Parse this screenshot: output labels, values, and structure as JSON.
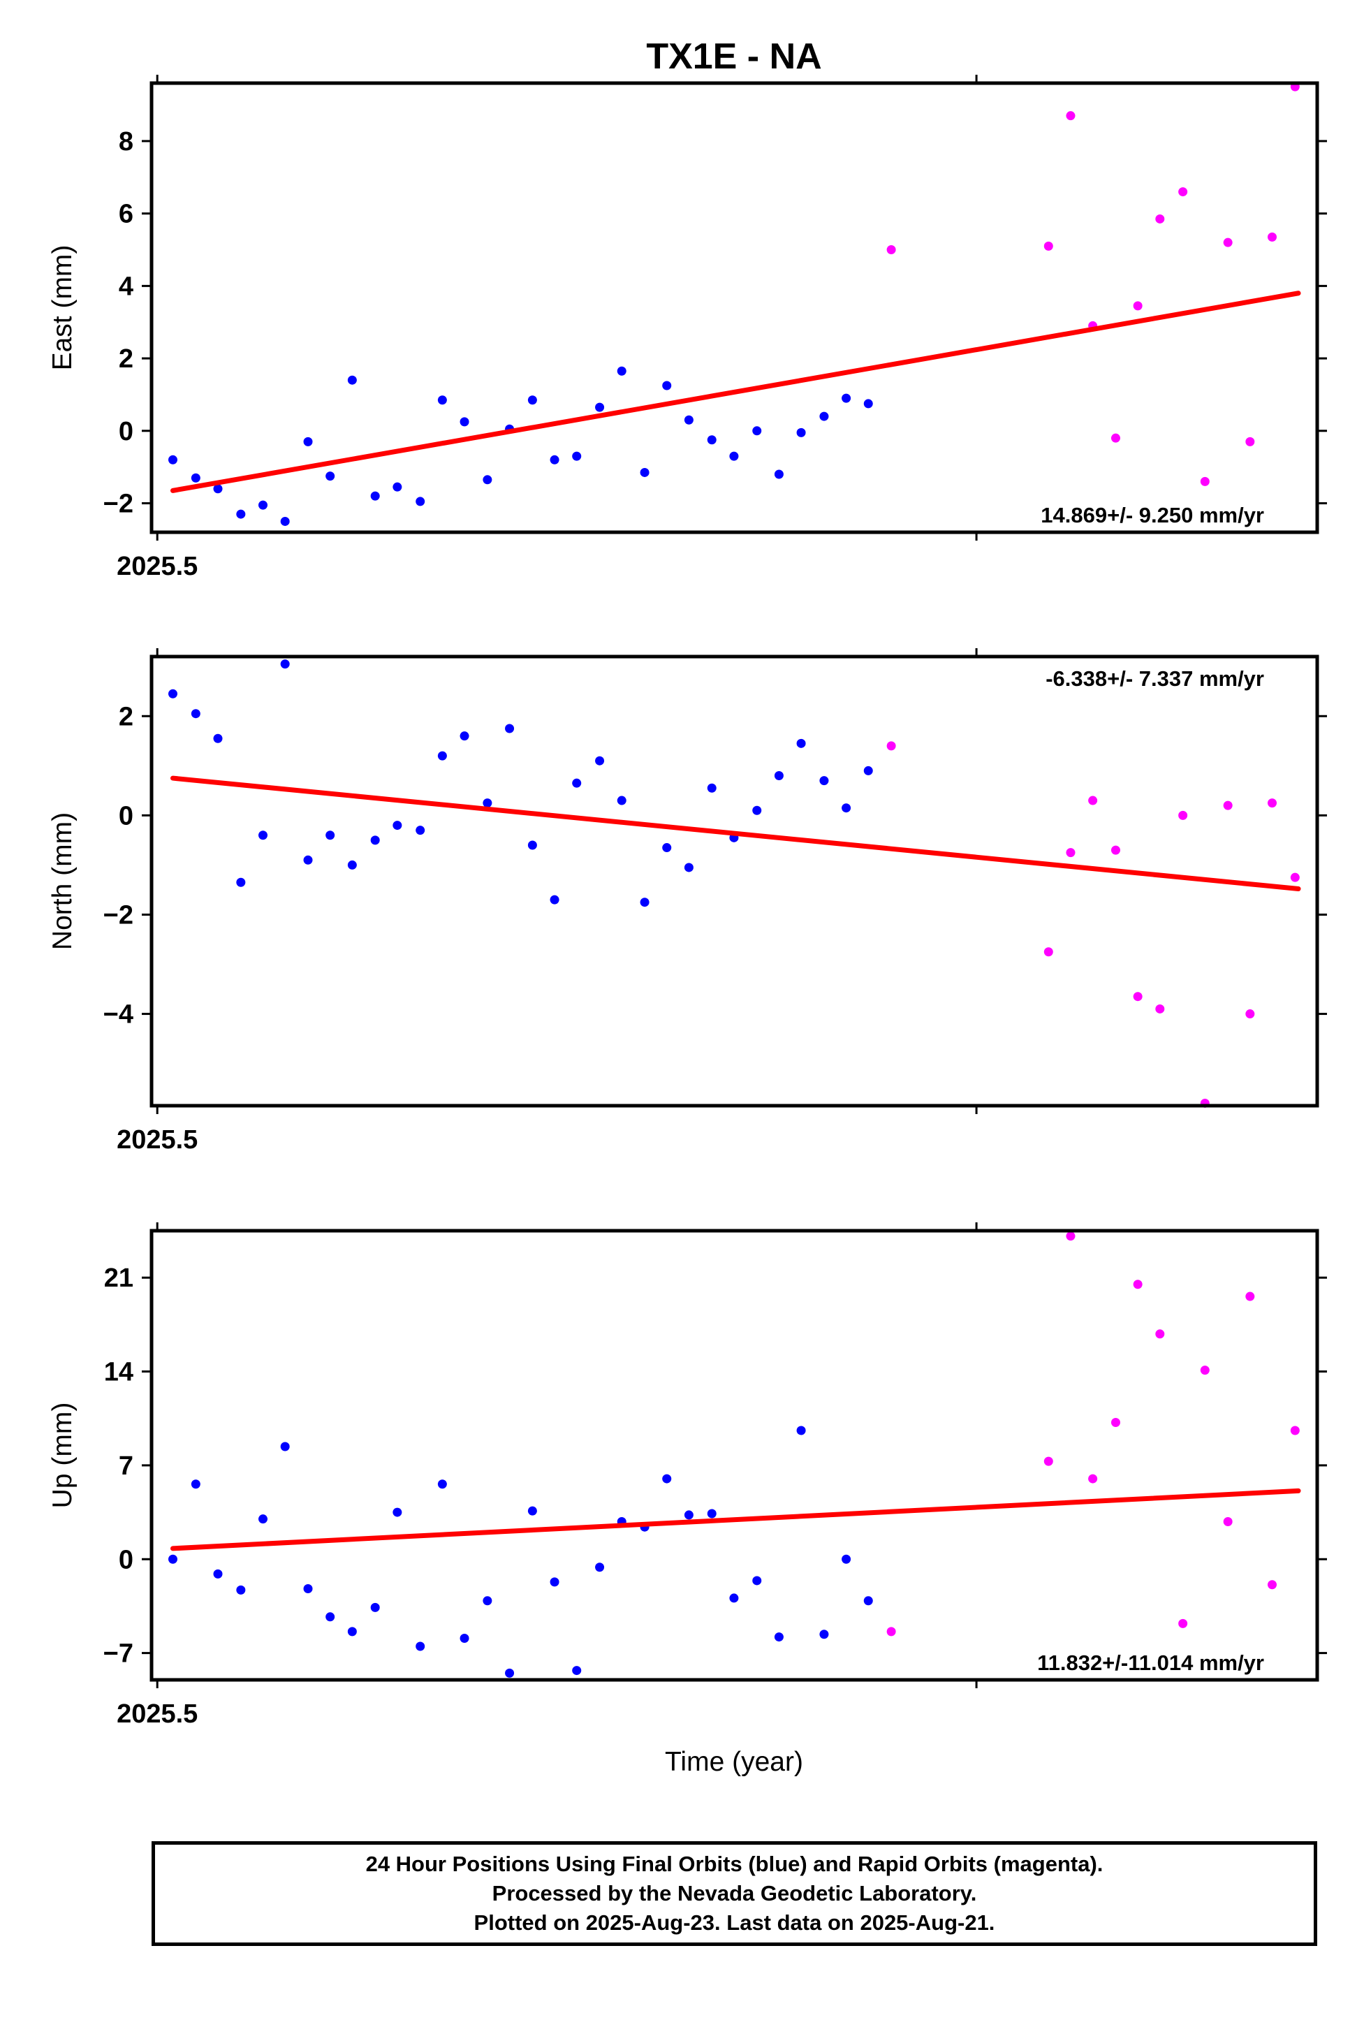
{
  "title": "TX1E - NA",
  "xlabel": "Time (year)",
  "caption": [
    "24 Hour Positions Using Final Orbits (blue) and Rapid Orbits (magenta).",
    "Processed by the Nevada Geodetic Laboratory.",
    "Plotted on 2025-Aug-23. Last data on 2025-Aug-21."
  ],
  "colors": {
    "final": "#0000ff",
    "rapid": "#ff00ff",
    "trend": "#ff0000",
    "axis": "#000000"
  },
  "chart_data": [
    {
      "type": "scatter",
      "ylabel": "East (mm)",
      "rate": "14.869+/- 9.250 mm/yr",
      "xlim": [
        2025.4993,
        2025.6416
      ],
      "ylim": [
        -2.8,
        9.6
      ],
      "yticks": [
        -2,
        0,
        2,
        4,
        6,
        8
      ],
      "xtick_label": "2025.5",
      "trend": [
        [
          2025.5019,
          -1.65
        ],
        [
          2025.6393,
          3.8
        ]
      ],
      "series": [
        {
          "color": "blue",
          "points": [
            [
              2025.5019,
              -0.8
            ],
            [
              2025.5047,
              -1.3
            ],
            [
              2025.5074,
              -1.6
            ],
            [
              2025.5102,
              -2.3
            ],
            [
              2025.5129,
              -2.05
            ],
            [
              2025.5156,
              -2.5
            ],
            [
              2025.5184,
              -0.3
            ],
            [
              2025.5211,
              -1.25
            ],
            [
              2025.5238,
              1.4
            ],
            [
              2025.5266,
              -1.8
            ],
            [
              2025.5293,
              -1.55
            ],
            [
              2025.5321,
              -1.95
            ],
            [
              2025.5348,
              0.85
            ],
            [
              2025.5375,
              0.25
            ],
            [
              2025.5403,
              -1.35
            ],
            [
              2025.543,
              0.05
            ],
            [
              2025.5458,
              0.85
            ],
            [
              2025.5485,
              -0.8
            ],
            [
              2025.5512,
              -0.7
            ],
            [
              2025.554,
              0.65
            ],
            [
              2025.5567,
              1.65
            ],
            [
              2025.5595,
              -1.15
            ],
            [
              2025.5622,
              1.25
            ],
            [
              2025.5649,
              0.3
            ],
            [
              2025.5677,
              -0.25
            ],
            [
              2025.5704,
              -0.7
            ],
            [
              2025.5732,
              0.0
            ],
            [
              2025.5759,
              -1.2
            ],
            [
              2025.5786,
              -0.05
            ],
            [
              2025.5814,
              0.4
            ],
            [
              2025.5841,
              0.9
            ],
            [
              2025.5868,
              0.75
            ]
          ]
        },
        {
          "color": "magenta",
          "points": [
            [
              2025.5896,
              5.0
            ],
            [
              2025.6088,
              5.1
            ],
            [
              2025.6115,
              8.7
            ],
            [
              2025.6142,
              2.9
            ],
            [
              2025.617,
              -0.2
            ],
            [
              2025.6197,
              3.45
            ],
            [
              2025.6224,
              5.85
            ],
            [
              2025.6252,
              6.6
            ],
            [
              2025.6279,
              -1.4
            ],
            [
              2025.6307,
              5.2
            ],
            [
              2025.6334,
              -0.3
            ],
            [
              2025.6361,
              5.35
            ],
            [
              2025.6389,
              9.5
            ]
          ]
        }
      ]
    },
    {
      "type": "scatter",
      "ylabel": "North (mm)",
      "rate": "-6.338+/- 7.337 mm/yr",
      "xlim": [
        2025.4993,
        2025.6416
      ],
      "ylim": [
        -5.85,
        3.2
      ],
      "yticks": [
        -4,
        -2,
        0,
        2
      ],
      "xtick_label": "2025.5",
      "trend": [
        [
          2025.5019,
          0.75
        ],
        [
          2025.6393,
          -1.48
        ]
      ],
      "series": [
        {
          "color": "blue",
          "points": [
            [
              2025.5019,
              2.45
            ],
            [
              2025.5047,
              2.05
            ],
            [
              2025.5074,
              1.55
            ],
            [
              2025.5102,
              -1.35
            ],
            [
              2025.5129,
              -0.4
            ],
            [
              2025.5156,
              3.05
            ],
            [
              2025.5184,
              -0.9
            ],
            [
              2025.5211,
              -0.4
            ],
            [
              2025.5238,
              -1.0
            ],
            [
              2025.5266,
              -0.5
            ],
            [
              2025.5293,
              -0.2
            ],
            [
              2025.5321,
              -0.3
            ],
            [
              2025.5348,
              1.2
            ],
            [
              2025.5375,
              1.6
            ],
            [
              2025.5403,
              0.25
            ],
            [
              2025.543,
              1.75
            ],
            [
              2025.5458,
              -0.6
            ],
            [
              2025.5485,
              -1.7
            ],
            [
              2025.5512,
              0.65
            ],
            [
              2025.554,
              1.1
            ],
            [
              2025.5567,
              0.3
            ],
            [
              2025.5595,
              -1.75
            ],
            [
              2025.5622,
              -0.65
            ],
            [
              2025.5649,
              -1.05
            ],
            [
              2025.5677,
              0.55
            ],
            [
              2025.5704,
              -0.45
            ],
            [
              2025.5732,
              0.1
            ],
            [
              2025.5759,
              0.8
            ],
            [
              2025.5786,
              1.45
            ],
            [
              2025.5814,
              0.7
            ],
            [
              2025.5841,
              0.15
            ],
            [
              2025.5868,
              0.9
            ]
          ]
        },
        {
          "color": "magenta",
          "points": [
            [
              2025.5896,
              1.4
            ],
            [
              2025.6088,
              -2.75
            ],
            [
              2025.6115,
              -0.75
            ],
            [
              2025.6142,
              0.3
            ],
            [
              2025.617,
              -0.7
            ],
            [
              2025.6197,
              -3.65
            ],
            [
              2025.6224,
              -3.9
            ],
            [
              2025.6252,
              -0.0
            ],
            [
              2025.6279,
              -5.8
            ],
            [
              2025.6307,
              0.2
            ],
            [
              2025.6334,
              -4.0
            ],
            [
              2025.6361,
              0.25
            ],
            [
              2025.6389,
              -1.25
            ]
          ]
        }
      ]
    },
    {
      "type": "scatter",
      "ylabel": "Up (mm)",
      "rate": "11.832+/-11.014 mm/yr",
      "xlim": [
        2025.4993,
        2025.6416
      ],
      "ylim": [
        -9,
        24.5
      ],
      "yticks": [
        -7,
        0,
        7,
        14,
        21
      ],
      "xtick_label": "2025.5",
      "trend": [
        [
          2025.5019,
          0.8
        ],
        [
          2025.6393,
          5.1
        ]
      ],
      "series": [
        {
          "color": "blue",
          "points": [
            [
              2025.5019,
              0.0
            ],
            [
              2025.5047,
              5.6
            ],
            [
              2025.5074,
              -1.1
            ],
            [
              2025.5102,
              -2.3
            ],
            [
              2025.5129,
              3.0
            ],
            [
              2025.5156,
              8.4
            ],
            [
              2025.5184,
              -2.2
            ],
            [
              2025.5211,
              -4.3
            ],
            [
              2025.5238,
              -5.4
            ],
            [
              2025.5266,
              -3.6
            ],
            [
              2025.5293,
              3.5
            ],
            [
              2025.5321,
              -6.5
            ],
            [
              2025.5348,
              5.6
            ],
            [
              2025.5375,
              -5.9
            ],
            [
              2025.5403,
              -3.1
            ],
            [
              2025.543,
              -8.5
            ],
            [
              2025.5458,
              3.6
            ],
            [
              2025.5485,
              -1.7
            ],
            [
              2025.5512,
              -8.3
            ],
            [
              2025.554,
              -0.6
            ],
            [
              2025.5567,
              2.8
            ],
            [
              2025.5595,
              2.4
            ],
            [
              2025.5622,
              6.0
            ],
            [
              2025.5649,
              3.3
            ],
            [
              2025.5677,
              3.4
            ],
            [
              2025.5704,
              -2.9
            ],
            [
              2025.5732,
              -1.6
            ],
            [
              2025.5759,
              -5.8
            ],
            [
              2025.5786,
              9.6
            ],
            [
              2025.5814,
              -5.6
            ],
            [
              2025.5841,
              0.0
            ],
            [
              2025.5868,
              -3.1
            ]
          ]
        },
        {
          "color": "magenta",
          "points": [
            [
              2025.5896,
              -5.4
            ],
            [
              2025.6115,
              24.1
            ],
            [
              2025.6088,
              7.3
            ],
            [
              2025.6142,
              6.0
            ],
            [
              2025.617,
              10.2
            ],
            [
              2025.6197,
              20.5
            ],
            [
              2025.6224,
              16.8
            ],
            [
              2025.6252,
              -4.8
            ],
            [
              2025.6279,
              14.1
            ],
            [
              2025.6307,
              2.8
            ],
            [
              2025.6334,
              19.6
            ],
            [
              2025.6361,
              -1.9
            ],
            [
              2025.6389,
              9.6
            ]
          ]
        }
      ]
    }
  ]
}
